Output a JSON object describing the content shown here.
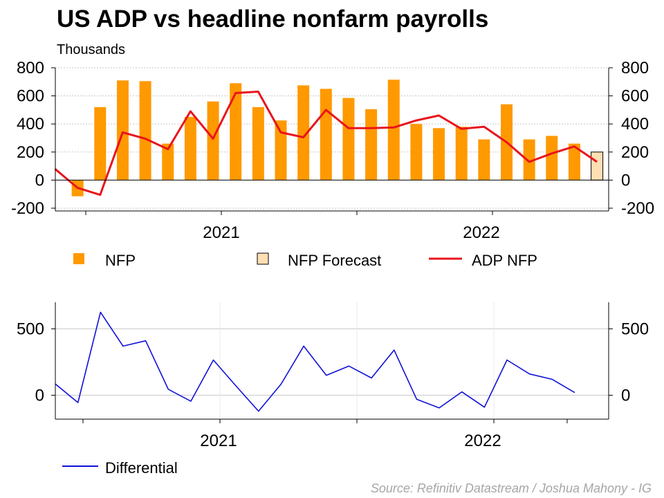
{
  "title": "US ADP vs headline nonfarm payrolls",
  "subtitle": "Thousands",
  "source": "Source: Refinitiv Datastream / Joshua Mahony - IG",
  "colors": {
    "nfp": "#ff9900",
    "nfp_forecast": "#ffdfb3",
    "adp": "#e8141c",
    "differential": "#1010d8",
    "grid": "#c8c8c8"
  },
  "chart_data": [
    {
      "type": "bar",
      "title": "US ADP vs headline nonfarm payrolls",
      "ylabel": "Thousands",
      "ylim": [
        -200,
        800
      ],
      "y_ticks": [
        -200,
        0,
        200,
        400,
        600,
        800
      ],
      "x_ticks": [
        "2021",
        "2022"
      ],
      "grid": true,
      "legend_position": "bottom",
      "x": [
        "2020-09",
        "2020-10",
        "2020-11",
        "2020-12",
        "2021-01",
        "2021-02",
        "2021-03",
        "2021-04",
        "2021-05",
        "2021-06",
        "2021-07",
        "2021-08",
        "2021-09",
        "2021-10",
        "2021-11",
        "2021-12",
        "2022-01",
        "2022-02",
        "2022-03",
        "2022-04",
        "2022-05",
        "2022-06",
        "2022-07",
        "2022-08",
        "2022-09",
        "2022-10",
        "2022-11"
      ],
      "series": [
        {
          "name": "NFP",
          "type": "bar",
          "values": [
            null,
            -115,
            520,
            710,
            705,
            260,
            450,
            560,
            690,
            520,
            425,
            675,
            650,
            585,
            505,
            715,
            400,
            370,
            380,
            290,
            540,
            290,
            315,
            260,
            null,
            null,
            null
          ]
        },
        {
          "name": "NFP Forecast",
          "type": "bar",
          "values": [
            null,
            null,
            null,
            null,
            null,
            null,
            null,
            null,
            null,
            null,
            null,
            null,
            null,
            null,
            null,
            null,
            null,
            null,
            null,
            null,
            null,
            null,
            null,
            null,
            200,
            null,
            null
          ]
        },
        {
          "name": "ADP NFP",
          "type": "line",
          "values": [
            80,
            -55,
            -105,
            340,
            295,
            220,
            490,
            295,
            620,
            630,
            340,
            305,
            500,
            370,
            370,
            375,
            425,
            460,
            365,
            380,
            270,
            130,
            190,
            240,
            130,
            null,
            null
          ]
        }
      ]
    },
    {
      "type": "line",
      "ylim": [
        -180,
        700
      ],
      "y_ticks": [
        0,
        500
      ],
      "x_ticks": [
        "2021",
        "2022"
      ],
      "grid": true,
      "legend_position": "bottom",
      "x": [
        "2020-09",
        "2020-10",
        "2020-11",
        "2020-12",
        "2021-01",
        "2021-02",
        "2021-03",
        "2021-04",
        "2021-05",
        "2021-06",
        "2021-07",
        "2021-08",
        "2021-09",
        "2021-10",
        "2021-11",
        "2021-12",
        "2022-01",
        "2022-02",
        "2022-03",
        "2022-04",
        "2022-05",
        "2022-06",
        "2022-07",
        "2022-08"
      ],
      "series": [
        {
          "name": "Differential",
          "values": [
            85,
            -55,
            625,
            370,
            410,
            45,
            -45,
            265,
            70,
            -120,
            85,
            370,
            150,
            220,
            130,
            340,
            -30,
            -95,
            25,
            -90,
            265,
            160,
            120,
            20
          ]
        }
      ]
    }
  ]
}
